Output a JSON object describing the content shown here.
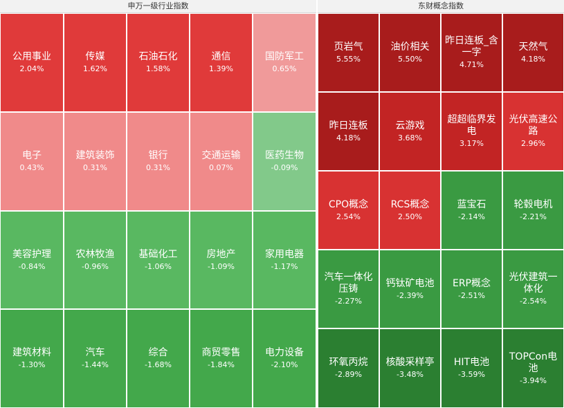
{
  "panels": [
    {
      "id": "sw",
      "title": "申万一级行业指数",
      "cols": 5,
      "rows": 4,
      "cells": [
        {
          "name": "公用事业",
          "value": "2.04%",
          "pct": 2.04
        },
        {
          "name": "传媒",
          "value": "1.62%",
          "pct": 1.62
        },
        {
          "name": "石油石化",
          "value": "1.58%",
          "pct": 1.58
        },
        {
          "name": "通信",
          "value": "1.39%",
          "pct": 1.39
        },
        {
          "name": "国防军工",
          "value": "0.65%",
          "pct": 0.65
        },
        {
          "name": "电子",
          "value": "0.43%",
          "pct": 0.43
        },
        {
          "name": "建筑装饰",
          "value": "0.31%",
          "pct": 0.31
        },
        {
          "name": "银行",
          "value": "0.31%",
          "pct": 0.31
        },
        {
          "name": "交通运输",
          "value": "0.07%",
          "pct": 0.07
        },
        {
          "name": "医药生物",
          "value": "-0.09%",
          "pct": -0.09
        },
        {
          "name": "美容护理",
          "value": "-0.84%",
          "pct": -0.84
        },
        {
          "name": "农林牧渔",
          "value": "-0.96%",
          "pct": -0.96
        },
        {
          "name": "基础化工",
          "value": "-1.06%",
          "pct": -1.06
        },
        {
          "name": "房地产",
          "value": "-1.09%",
          "pct": -1.09
        },
        {
          "name": "家用电器",
          "value": "-1.17%",
          "pct": -1.17
        },
        {
          "name": "建筑材料",
          "value": "-1.30%",
          "pct": -1.3
        },
        {
          "name": "汽车",
          "value": "-1.44%",
          "pct": -1.44
        },
        {
          "name": "综合",
          "value": "-1.68%",
          "pct": -1.68
        },
        {
          "name": "商贸零售",
          "value": "-1.84%",
          "pct": -1.84
        },
        {
          "name": "电力设备",
          "value": "-2.10%",
          "pct": -2.1
        }
      ]
    },
    {
      "id": "eastmoney",
      "title": "东财概念指数",
      "cols": 4,
      "rows": 5,
      "cells": [
        {
          "name": "页岩气",
          "value": "5.55%",
          "pct": 5.55
        },
        {
          "name": "油价相关",
          "value": "5.50%",
          "pct": 5.5
        },
        {
          "name": "昨日连板_含一字",
          "value": "4.71%",
          "pct": 4.71
        },
        {
          "name": "天然气",
          "value": "4.18%",
          "pct": 4.18
        },
        {
          "name": "昨日连板",
          "value": "4.18%",
          "pct": 4.18
        },
        {
          "name": "云游戏",
          "value": "3.68%",
          "pct": 3.68
        },
        {
          "name": "超超临界发电",
          "value": "3.17%",
          "pct": 3.17
        },
        {
          "name": "光伏高速公路",
          "value": "2.96%",
          "pct": 2.96
        },
        {
          "name": "CPO概念",
          "value": "2.54%",
          "pct": 2.54
        },
        {
          "name": "RCS概念",
          "value": "2.50%",
          "pct": 2.5
        },
        {
          "name": "蓝宝石",
          "value": "-2.14%",
          "pct": -2.14
        },
        {
          "name": "轮毂电机",
          "value": "-2.21%",
          "pct": -2.21
        },
        {
          "name": "汽车一体化压铸",
          "value": "-2.27%",
          "pct": -2.27
        },
        {
          "name": "钙钛矿电池",
          "value": "-2.39%",
          "pct": -2.39
        },
        {
          "name": "ERP概念",
          "value": "-2.51%",
          "pct": -2.51
        },
        {
          "name": "光伏建筑一体化",
          "value": "-2.54%",
          "pct": -2.54
        },
        {
          "name": "环氧丙烷",
          "value": "-2.89%",
          "pct": -2.89
        },
        {
          "name": "核酸采样亭",
          "value": "-3.48%",
          "pct": -3.48
        },
        {
          "name": "HIT电池",
          "value": "-3.59%",
          "pct": -3.59
        },
        {
          "name": "TOPCon电池",
          "value": "-3.94%",
          "pct": -3.94
        }
      ]
    }
  ],
  "colors": {
    "up_strong": "#e03a3a",
    "up_mid": "#ec5b5b",
    "up_light": "#f08a8a",
    "up_pale": "#f09a9a",
    "concept_up_strong": "#a81c1c",
    "concept_up_mid": "#c22424",
    "concept_up_light": "#d83232",
    "down_pale": "#82c98a",
    "down_light": "#59b861",
    "down_mid": "#43a84b",
    "concept_down": "#3a9a42",
    "concept_down_dark": "#2b7f31"
  },
  "chart_data": [
    {
      "type": "heatmap",
      "title": "申万一级行业指数",
      "categories": [
        "公用事业",
        "传媒",
        "石油石化",
        "通信",
        "国防军工",
        "电子",
        "建筑装饰",
        "银行",
        "交通运输",
        "医药生物",
        "美容护理",
        "农林牧渔",
        "基础化工",
        "房地产",
        "家用电器",
        "建筑材料",
        "汽车",
        "综合",
        "商贸零售",
        "电力设备"
      ],
      "values": [
        2.04,
        1.62,
        1.58,
        1.39,
        0.65,
        0.43,
        0.31,
        0.31,
        0.07,
        -0.09,
        -0.84,
        -0.96,
        -1.06,
        -1.09,
        -1.17,
        -1.3,
        -1.44,
        -1.68,
        -1.84,
        -2.1
      ]
    },
    {
      "type": "heatmap",
      "title": "东财概念指数",
      "categories": [
        "页岩气",
        "油价相关",
        "昨日连板_含一字",
        "天然气",
        "昨日连板",
        "云游戏",
        "超超临界发电",
        "光伏高速公路",
        "CPO概念",
        "RCS概念",
        "蓝宝石",
        "轮毂电机",
        "汽车一体化压铸",
        "钙钛矿电池",
        "ERP概念",
        "光伏建筑一体化",
        "环氧丙烷",
        "核酸采样亭",
        "HIT电池",
        "TOPCon电池"
      ],
      "values": [
        5.55,
        5.5,
        4.71,
        4.18,
        4.18,
        3.68,
        3.17,
        2.96,
        2.54,
        2.5,
        -2.14,
        -2.21,
        -2.27,
        -2.39,
        -2.51,
        -2.54,
        -2.89,
        -3.48,
        -3.59,
        -3.94
      ]
    }
  ]
}
